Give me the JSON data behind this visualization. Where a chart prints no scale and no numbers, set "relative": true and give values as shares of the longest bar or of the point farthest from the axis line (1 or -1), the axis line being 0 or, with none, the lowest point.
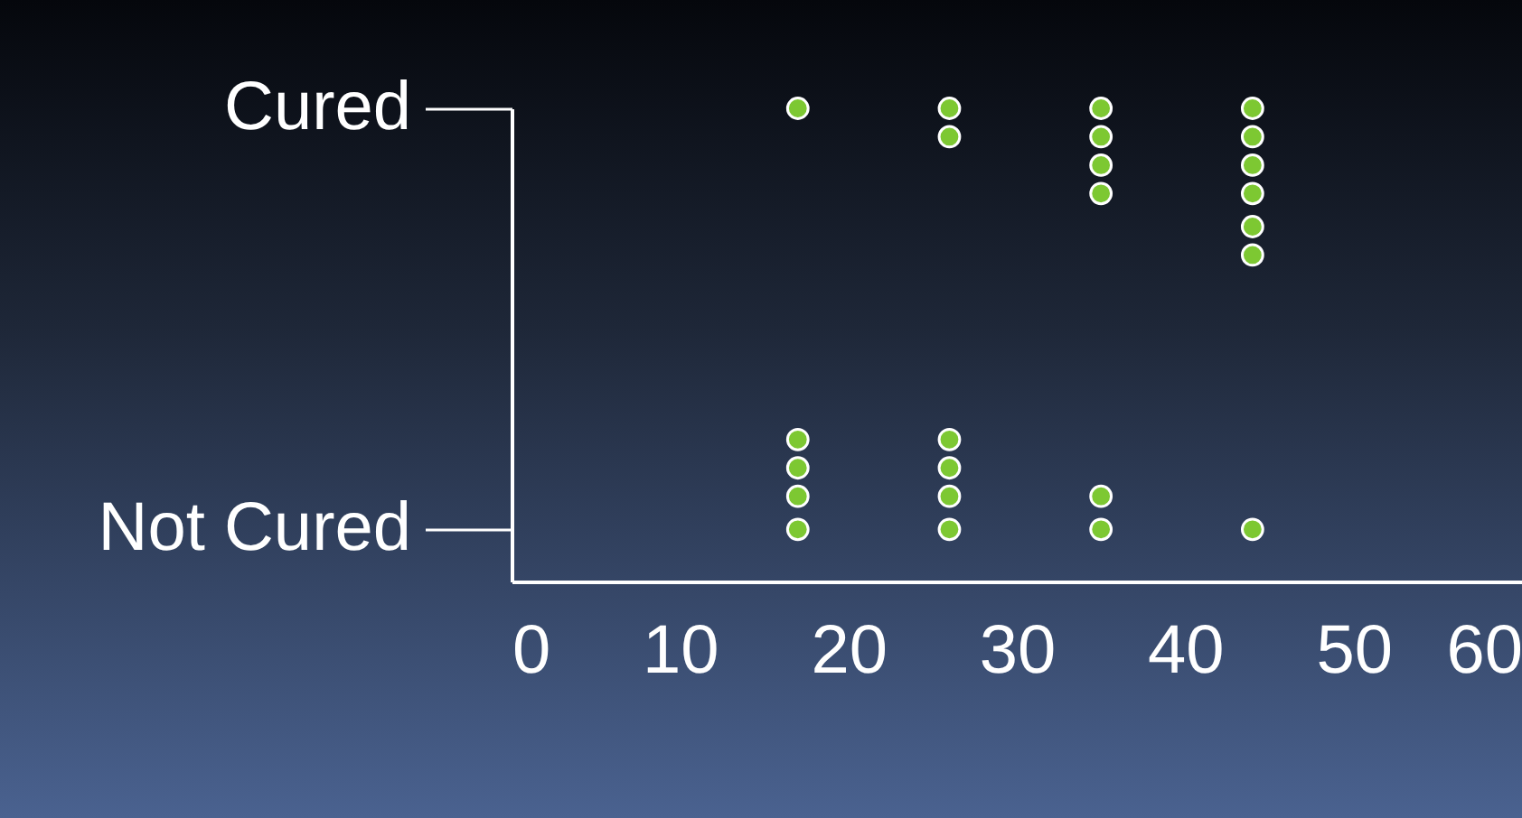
{
  "chart_data": {
    "type": "scatter",
    "relative": true,
    "x": [
      17,
      26,
      26,
      35,
      35,
      35,
      35,
      44,
      44,
      44,
      44,
      44,
      44,
      17,
      17,
      17,
      17,
      26,
      26,
      26,
      26,
      35,
      35,
      44
    ],
    "values": [
      1,
      1,
      0.94,
      1,
      0.94,
      0.88,
      0.82,
      1,
      0.94,
      0.88,
      0.82,
      0.75,
      0.69,
      0.3,
      0.24,
      0.18,
      0.11,
      0.3,
      0.24,
      0.18,
      0.11,
      0.18,
      0.11,
      0.11
    ],
    "color": "#7dc832",
    "marker": "circle",
    "xlim": [
      0,
      60
    ],
    "xticks": [
      0,
      10,
      20,
      30,
      40,
      50,
      60
    ],
    "annotations": [
      "Cured",
      "Not Cured"
    ]
  }
}
